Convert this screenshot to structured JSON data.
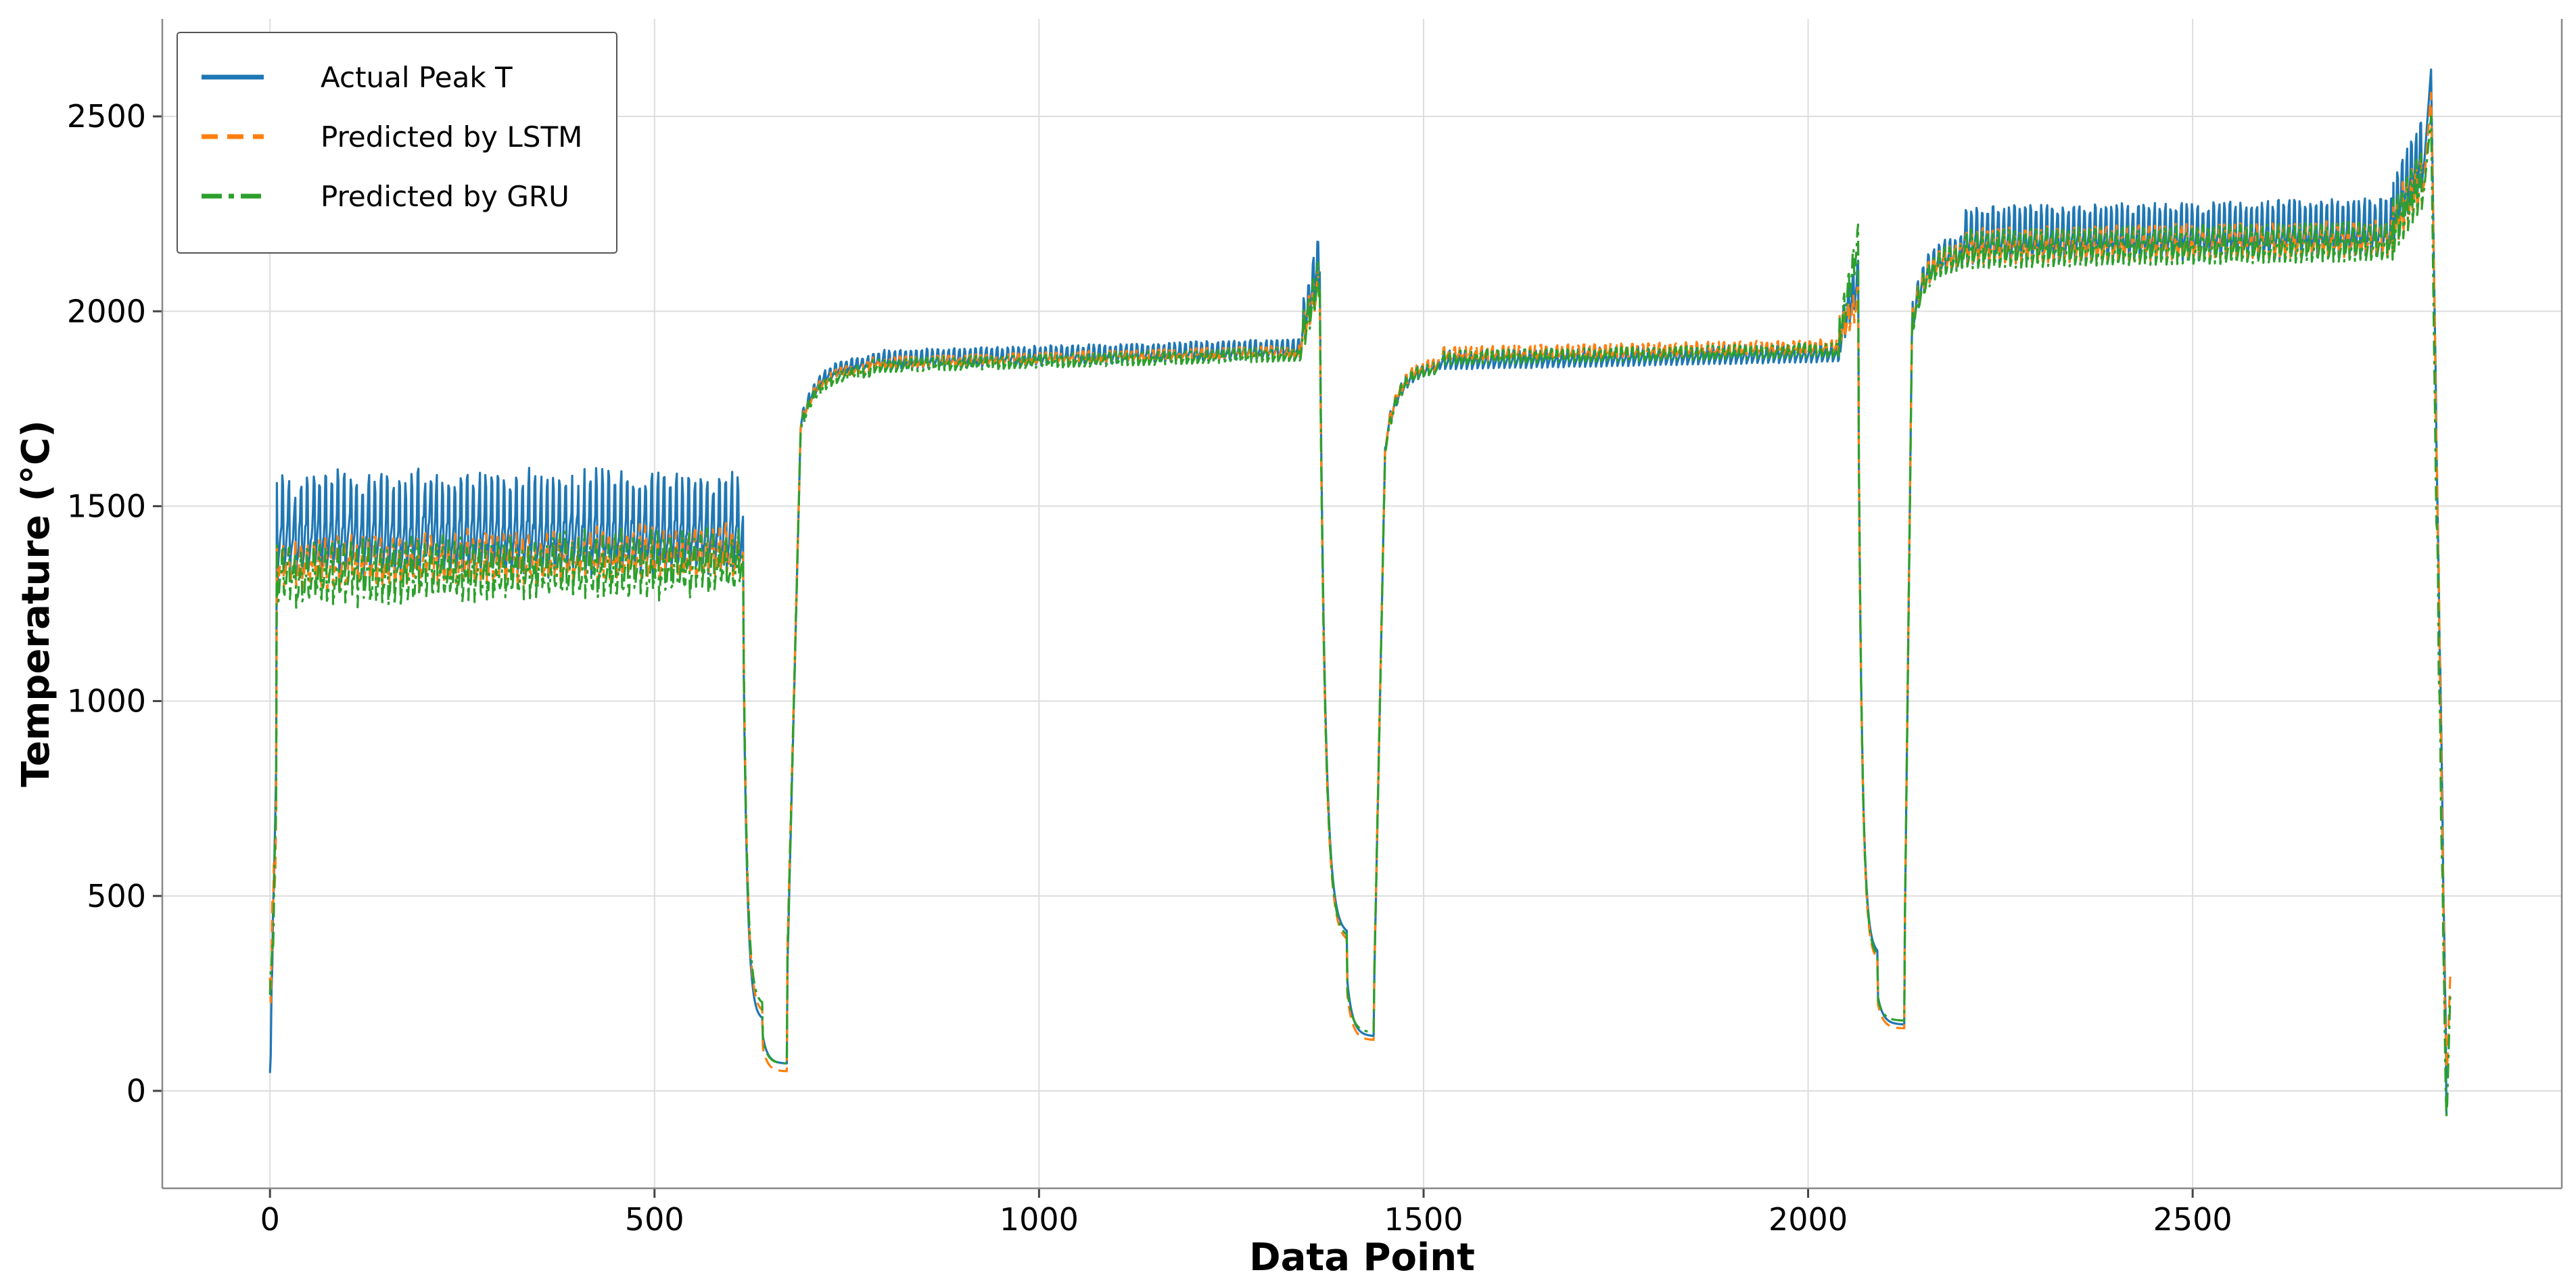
{
  "chart_data": {
    "type": "line",
    "title": "",
    "xlabel": "Data Point",
    "ylabel": "Temperature (°C)",
    "xlim": [
      -140,
      2980
    ],
    "ylim": [
      -250,
      2750
    ],
    "x_ticks": [
      0,
      500,
      1000,
      1500,
      2000,
      2500
    ],
    "y_ticks": [
      0,
      500,
      1000,
      1500,
      2000,
      2500
    ],
    "grid": true,
    "legend_position": "top-left",
    "series": [
      {
        "name": "Actual Peak T",
        "color": "#1f77b4",
        "style": "solid",
        "segments": [
          {
            "x0": 0,
            "x1": 8,
            "start": 20,
            "end": 860,
            "osc": 0,
            "noise": 60
          },
          {
            "x0": 8,
            "x1": 615,
            "start": 1380,
            "end": 1390,
            "osc": 175,
            "period": 8,
            "noise": 15
          },
          {
            "x0": 615,
            "x1": 640,
            "start": 1280,
            "end": 180,
            "curve": "decay"
          },
          {
            "x0": 640,
            "x1": 672,
            "start": 150,
            "end": 70,
            "curve": "decay"
          },
          {
            "x0": 672,
            "x1": 690,
            "start": 250,
            "end": 1700,
            "curve": "rise"
          },
          {
            "x0": 690,
            "x1": 780,
            "start": 1700,
            "end": 1860,
            "curve": "sat",
            "osc": 25,
            "period": 7
          },
          {
            "x0": 780,
            "x1": 1340,
            "start": 1860,
            "end": 1890,
            "osc": 35,
            "period": 7
          },
          {
            "x0": 1340,
            "x1": 1365,
            "start": 1900,
            "end": 2100,
            "osc": 90,
            "period": 6
          },
          {
            "x0": 1365,
            "x1": 1400,
            "start": 2050,
            "end": 400,
            "curve": "decay"
          },
          {
            "x0": 1400,
            "x1": 1435,
            "start": 300,
            "end": 140,
            "curve": "decay"
          },
          {
            "x0": 1435,
            "x1": 1450,
            "start": 200,
            "end": 1650,
            "curve": "rise"
          },
          {
            "x0": 1450,
            "x1": 1520,
            "start": 1650,
            "end": 1850,
            "curve": "sat",
            "osc": 25,
            "period": 7
          },
          {
            "x0": 1520,
            "x1": 2040,
            "start": 1860,
            "end": 1880,
            "osc": 35,
            "period": 7
          },
          {
            "x0": 2040,
            "x1": 2065,
            "start": 1900,
            "end": 2050,
            "osc": 80,
            "period": 6
          },
          {
            "x0": 2065,
            "x1": 2090,
            "start": 1900,
            "end": 350,
            "curve": "decay"
          },
          {
            "x0": 2090,
            "x1": 2125,
            "start": 250,
            "end": 170,
            "curve": "decay"
          },
          {
            "x0": 2125,
            "x1": 2135,
            "start": 300,
            "end": 1950,
            "curve": "rise"
          },
          {
            "x0": 2135,
            "x1": 2200,
            "start": 1950,
            "end": 2130,
            "curve": "sat",
            "osc": 60,
            "period": 7
          },
          {
            "x0": 2200,
            "x1": 2760,
            "start": 2150,
            "end": 2170,
            "osc": 105,
            "period": 7
          },
          {
            "x0": 2760,
            "x1": 2800,
            "start": 2200,
            "end": 2350,
            "osc": 130,
            "period": 6
          },
          {
            "x0": 2800,
            "x1": 2810,
            "start": 2350,
            "end": 2620
          },
          {
            "x0": 2810,
            "x1": 2815,
            "start": 2620,
            "end": 1950
          },
          {
            "x0": 2815,
            "x1": 2830,
            "start": 1950,
            "end": 0,
            "noise": 60
          }
        ]
      },
      {
        "name": "Predicted by LSTM",
        "color": "#ff7f0e",
        "style": "dashed",
        "segments": [
          {
            "x0": 0,
            "x1": 8,
            "start": 250,
            "end": 700,
            "osc": 0,
            "noise": 80
          },
          {
            "x0": 8,
            "x1": 615,
            "start": 1320,
            "end": 1350,
            "osc": 80,
            "period": 8,
            "noise": 20
          },
          {
            "x0": 615,
            "x1": 640,
            "start": 1350,
            "end": 200,
            "curve": "decay"
          },
          {
            "x0": 640,
            "x1": 672,
            "start": 120,
            "end": 50,
            "curve": "decay"
          },
          {
            "x0": 672,
            "x1": 690,
            "start": 300,
            "end": 1700,
            "curve": "rise"
          },
          {
            "x0": 690,
            "x1": 780,
            "start": 1700,
            "end": 1850,
            "curve": "sat",
            "osc": 20,
            "period": 7
          },
          {
            "x0": 780,
            "x1": 1340,
            "start": 1860,
            "end": 1890,
            "osc": 20,
            "period": 7
          },
          {
            "x0": 1340,
            "x1": 1365,
            "start": 1900,
            "end": 2050,
            "osc": 70,
            "period": 6
          },
          {
            "x0": 1365,
            "x1": 1400,
            "start": 2000,
            "end": 380,
            "curve": "decay"
          },
          {
            "x0": 1400,
            "x1": 1435,
            "start": 260,
            "end": 130,
            "curve": "decay"
          },
          {
            "x0": 1435,
            "x1": 1450,
            "start": 220,
            "end": 1650,
            "curve": "rise"
          },
          {
            "x0": 1450,
            "x1": 1520,
            "start": 1650,
            "end": 1860,
            "curve": "sat",
            "osc": 20,
            "period": 7
          },
          {
            "x0": 1520,
            "x1": 2040,
            "start": 1880,
            "end": 1900,
            "osc": 25,
            "period": 7
          },
          {
            "x0": 2040,
            "x1": 2065,
            "start": 1920,
            "end": 2000,
            "osc": 60,
            "period": 6
          },
          {
            "x0": 2065,
            "x1": 2090,
            "start": 1880,
            "end": 330,
            "curve": "decay"
          },
          {
            "x0": 2090,
            "x1": 2125,
            "start": 230,
            "end": 160,
            "curve": "decay"
          },
          {
            "x0": 2125,
            "x1": 2135,
            "start": 300,
            "end": 1950,
            "curve": "rise"
          },
          {
            "x0": 2135,
            "x1": 2200,
            "start": 1950,
            "end": 2130,
            "curve": "sat",
            "osc": 45,
            "period": 7
          },
          {
            "x0": 2200,
            "x1": 2760,
            "start": 2140,
            "end": 2160,
            "osc": 65,
            "period": 7
          },
          {
            "x0": 2760,
            "x1": 2800,
            "start": 2180,
            "end": 2300,
            "osc": 100,
            "period": 6
          },
          {
            "x0": 2800,
            "x1": 2810,
            "start": 2300,
            "end": 2560
          },
          {
            "x0": 2810,
            "x1": 2815,
            "start": 2560,
            "end": 1950
          },
          {
            "x0": 2815,
            "x1": 2830,
            "start": 1950,
            "end": 0,
            "noise": 80
          },
          {
            "x0": 2830,
            "x1": 2835,
            "start": 0,
            "end": 300
          }
        ]
      },
      {
        "name": "Predicted by GRU",
        "color": "#2ca02c",
        "style": "dashdot",
        "segments": [
          {
            "x0": 0,
            "x1": 8,
            "start": 200,
            "end": 650,
            "osc": 0,
            "noise": 80
          },
          {
            "x0": 8,
            "x1": 615,
            "start": 1290,
            "end": 1320,
            "osc": 95,
            "period": 8,
            "noise": 25
          },
          {
            "x0": 615,
            "x1": 640,
            "start": 1300,
            "end": 220,
            "curve": "decay"
          },
          {
            "x0": 640,
            "x1": 672,
            "start": 140,
            "end": 70,
            "curve": "decay"
          },
          {
            "x0": 672,
            "x1": 690,
            "start": 280,
            "end": 1690,
            "curve": "rise"
          },
          {
            "x0": 690,
            "x1": 780,
            "start": 1690,
            "end": 1840,
            "curve": "sat",
            "osc": 22,
            "period": 7
          },
          {
            "x0": 780,
            "x1": 1340,
            "start": 1850,
            "end": 1880,
            "osc": 25,
            "period": 7
          },
          {
            "x0": 1340,
            "x1": 1365,
            "start": 1890,
            "end": 2060,
            "osc": 75,
            "period": 6
          },
          {
            "x0": 1365,
            "x1": 1400,
            "start": 2000,
            "end": 390,
            "curve": "decay"
          },
          {
            "x0": 1400,
            "x1": 1435,
            "start": 270,
            "end": 150,
            "curve": "decay"
          },
          {
            "x0": 1435,
            "x1": 1450,
            "start": 210,
            "end": 1640,
            "curve": "rise"
          },
          {
            "x0": 1450,
            "x1": 1520,
            "start": 1640,
            "end": 1850,
            "curve": "sat",
            "osc": 22,
            "period": 7
          },
          {
            "x0": 1520,
            "x1": 2040,
            "start": 1870,
            "end": 1890,
            "osc": 25,
            "period": 7
          },
          {
            "x0": 2040,
            "x1": 2065,
            "start": 1910,
            "end": 2150,
            "osc": 70,
            "period": 6
          },
          {
            "x0": 2065,
            "x1": 2090,
            "start": 1900,
            "end": 340,
            "curve": "decay"
          },
          {
            "x0": 2090,
            "x1": 2125,
            "start": 240,
            "end": 180,
            "curve": "decay"
          },
          {
            "x0": 2125,
            "x1": 2135,
            "start": 280,
            "end": 1940,
            "curve": "rise"
          },
          {
            "x0": 2135,
            "x1": 2200,
            "start": 1940,
            "end": 2120,
            "curve": "sat",
            "osc": 50,
            "period": 7
          },
          {
            "x0": 2200,
            "x1": 2760,
            "start": 2130,
            "end": 2150,
            "osc": 70,
            "period": 7
          },
          {
            "x0": 2760,
            "x1": 2800,
            "start": 2170,
            "end": 2290,
            "osc": 110,
            "period": 6
          },
          {
            "x0": 2800,
            "x1": 2810,
            "start": 2290,
            "end": 2500
          },
          {
            "x0": 2810,
            "x1": 2815,
            "start": 2500,
            "end": 1750
          },
          {
            "x0": 2815,
            "x1": 2830,
            "start": 1750,
            "end": -100,
            "noise": 80
          },
          {
            "x0": 2830,
            "x1": 2835,
            "start": -100,
            "end": 250
          }
        ]
      }
    ]
  }
}
